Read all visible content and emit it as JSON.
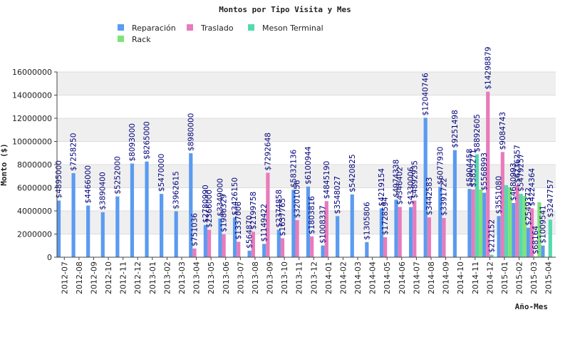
{
  "chart_data": {
    "type": "bar",
    "title": "Montos por Tipo Visita y Mes",
    "xlabel": "Año-Mes",
    "ylabel": "Monto ($)",
    "ylim": [
      0,
      16000000
    ],
    "yticks": [
      "0",
      "2000000",
      "4000000",
      "6000000",
      "8000000",
      "10000000",
      "12000000",
      "14000000",
      "16000000"
    ],
    "grid": "horizontal bands",
    "legend_position": "top-left",
    "categories": [
      "2012-07",
      "2012-08",
      "2012-09",
      "2012-10",
      "2012-11",
      "2012-12",
      "2013-01",
      "2013-02",
      "2013-03",
      "2013-04",
      "2013-05",
      "2013-06",
      "2013-07",
      "2013-08",
      "2013-09",
      "2013-10",
      "2013-11",
      "2013-12",
      "2014-01",
      "2014-02",
      "2014-03",
      "2014-04",
      "2014-05",
      "2014-06",
      "2014-07",
      "2014-08",
      "2014-09",
      "2014-10",
      "2014-11",
      "2014-12",
      "2015-01",
      "2015-02",
      "2015-03",
      "2015-04"
    ],
    "series": [
      {
        "name": "Reparación",
        "color": "#5b9bf0",
        "values": [
          4895000,
          7258250,
          4466000,
          3890400,
          5252000,
          8093000,
          8265000,
          5470000,
          3962615,
          8980000,
          2780990,
          3349000,
          3426150,
          564870,
          1149422,
          2374858,
          5832136,
          6100944,
          1008337,
          3548027,
          5420825,
          1305806,
          4219154,
          4974338,
          4330006,
          12040746,
          6077930,
          9251498,
          5904458,
          5568993,
          3551080,
          4680993,
          2549372,
          1009541
        ],
        "labels": [
          "$4895000",
          "$7258250",
          "$4466000",
          "$3890400",
          "$5252000",
          "$8093000",
          "$8265000",
          "$5470000",
          "$3962615",
          "$8980000",
          "$2780990",
          "$3349000",
          "$3426150",
          "$564870",
          "$1149422",
          "$2374858",
          "$5832136",
          "$6100944",
          "$1008337",
          "$3548027",
          "$5420825",
          "$1305806",
          "$4219154",
          "$4974338",
          "$4330006",
          "$12040746",
          "$6077930",
          "$9251498",
          "$5904458",
          "$5568993",
          "$3551080",
          "$4680993",
          "$2549372",
          "$1009541"
        ]
      },
      {
        "name": "Traslado",
        "color": "#e87bbc",
        "values": [
          null,
          null,
          null,
          null,
          null,
          null,
          null,
          null,
          null,
          751036,
          2366000,
          1986329,
          1337006,
          2199758,
          7292648,
          1637765,
          3201056,
          1803816,
          4845190,
          null,
          null,
          null,
          1728594,
          4346402,
          4892935,
          3442583,
          3391722,
          null,
          5855271,
          14298879,
          9084743,
          6236257,
          4224364,
          null
        ],
        "labels": [
          "",
          "",
          "",
          "",
          "",
          "",
          "",
          "",
          "",
          "$751036",
          "$2366000",
          "$1986329",
          "$1337006",
          "$2199758",
          "$7292648",
          "$1637765",
          "$3201056",
          "$1803816",
          "$4845190",
          "",
          "",
          "",
          "$1728594",
          "$4346402",
          "$4892935",
          "$3442583",
          "$3391722",
          "",
          "$5855271",
          "$14298879",
          "$9084743",
          "$6236257",
          "$4224364",
          ""
        ]
      },
      {
        "name": "Meson Terminal",
        "color": "#55d9b0",
        "values": [
          null,
          null,
          null,
          null,
          null,
          null,
          null,
          null,
          null,
          null,
          null,
          null,
          null,
          null,
          null,
          null,
          null,
          null,
          null,
          null,
          null,
          null,
          null,
          null,
          null,
          null,
          null,
          null,
          8892605,
          212152,
          6225000,
          5479257,
          68164,
          3247757
        ],
        "labels": [
          "",
          "",
          "",
          "",
          "",
          "",
          "",
          "",
          "",
          "",
          "",
          "",
          "",
          "",
          "",
          "",
          "",
          "",
          "",
          "",
          "",
          "",
          "",
          "",
          "",
          "",
          "",
          "",
          "$8892605",
          "$212152",
          "",
          "$5479257",
          "$68164",
          "$3247757"
        ]
      },
      {
        "name": "Rack",
        "color": "#7fe27a",
        "values": [
          null,
          null,
          null,
          null,
          null,
          null,
          null,
          null,
          null,
          null,
          null,
          null,
          null,
          null,
          null,
          null,
          null,
          null,
          null,
          null,
          null,
          null,
          null,
          null,
          null,
          null,
          null,
          null,
          5860000,
          null,
          6050000,
          5300000,
          4750000,
          null
        ],
        "labels": []
      }
    ]
  }
}
